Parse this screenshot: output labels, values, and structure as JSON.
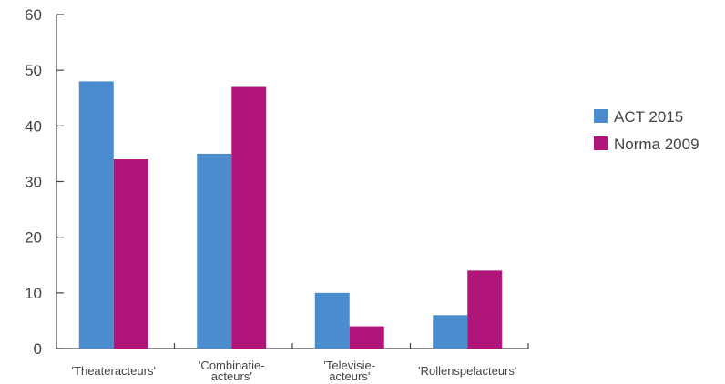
{
  "chart_data": {
    "type": "bar",
    "categories": [
      [
        "'Theateracteurs'"
      ],
      [
        "'Combinatie-",
        "acteurs'"
      ],
      [
        "'Televisie-",
        "acteurs'"
      ],
      [
        "'Rollenspelacteurs'"
      ]
    ],
    "series": [
      {
        "name": "ACT 2015",
        "color": "#4a8ccd",
        "values": [
          48,
          35,
          10,
          6
        ]
      },
      {
        "name": "Norma 2009",
        "color": "#b0157a",
        "values": [
          34,
          47,
          4,
          14
        ]
      }
    ],
    "ylim": [
      0,
      60
    ],
    "yticks": [
      0,
      10,
      20,
      30,
      40,
      50,
      60
    ],
    "title": "",
    "xlabel": "",
    "ylabel": "",
    "grid": false,
    "legend_position": "right"
  }
}
